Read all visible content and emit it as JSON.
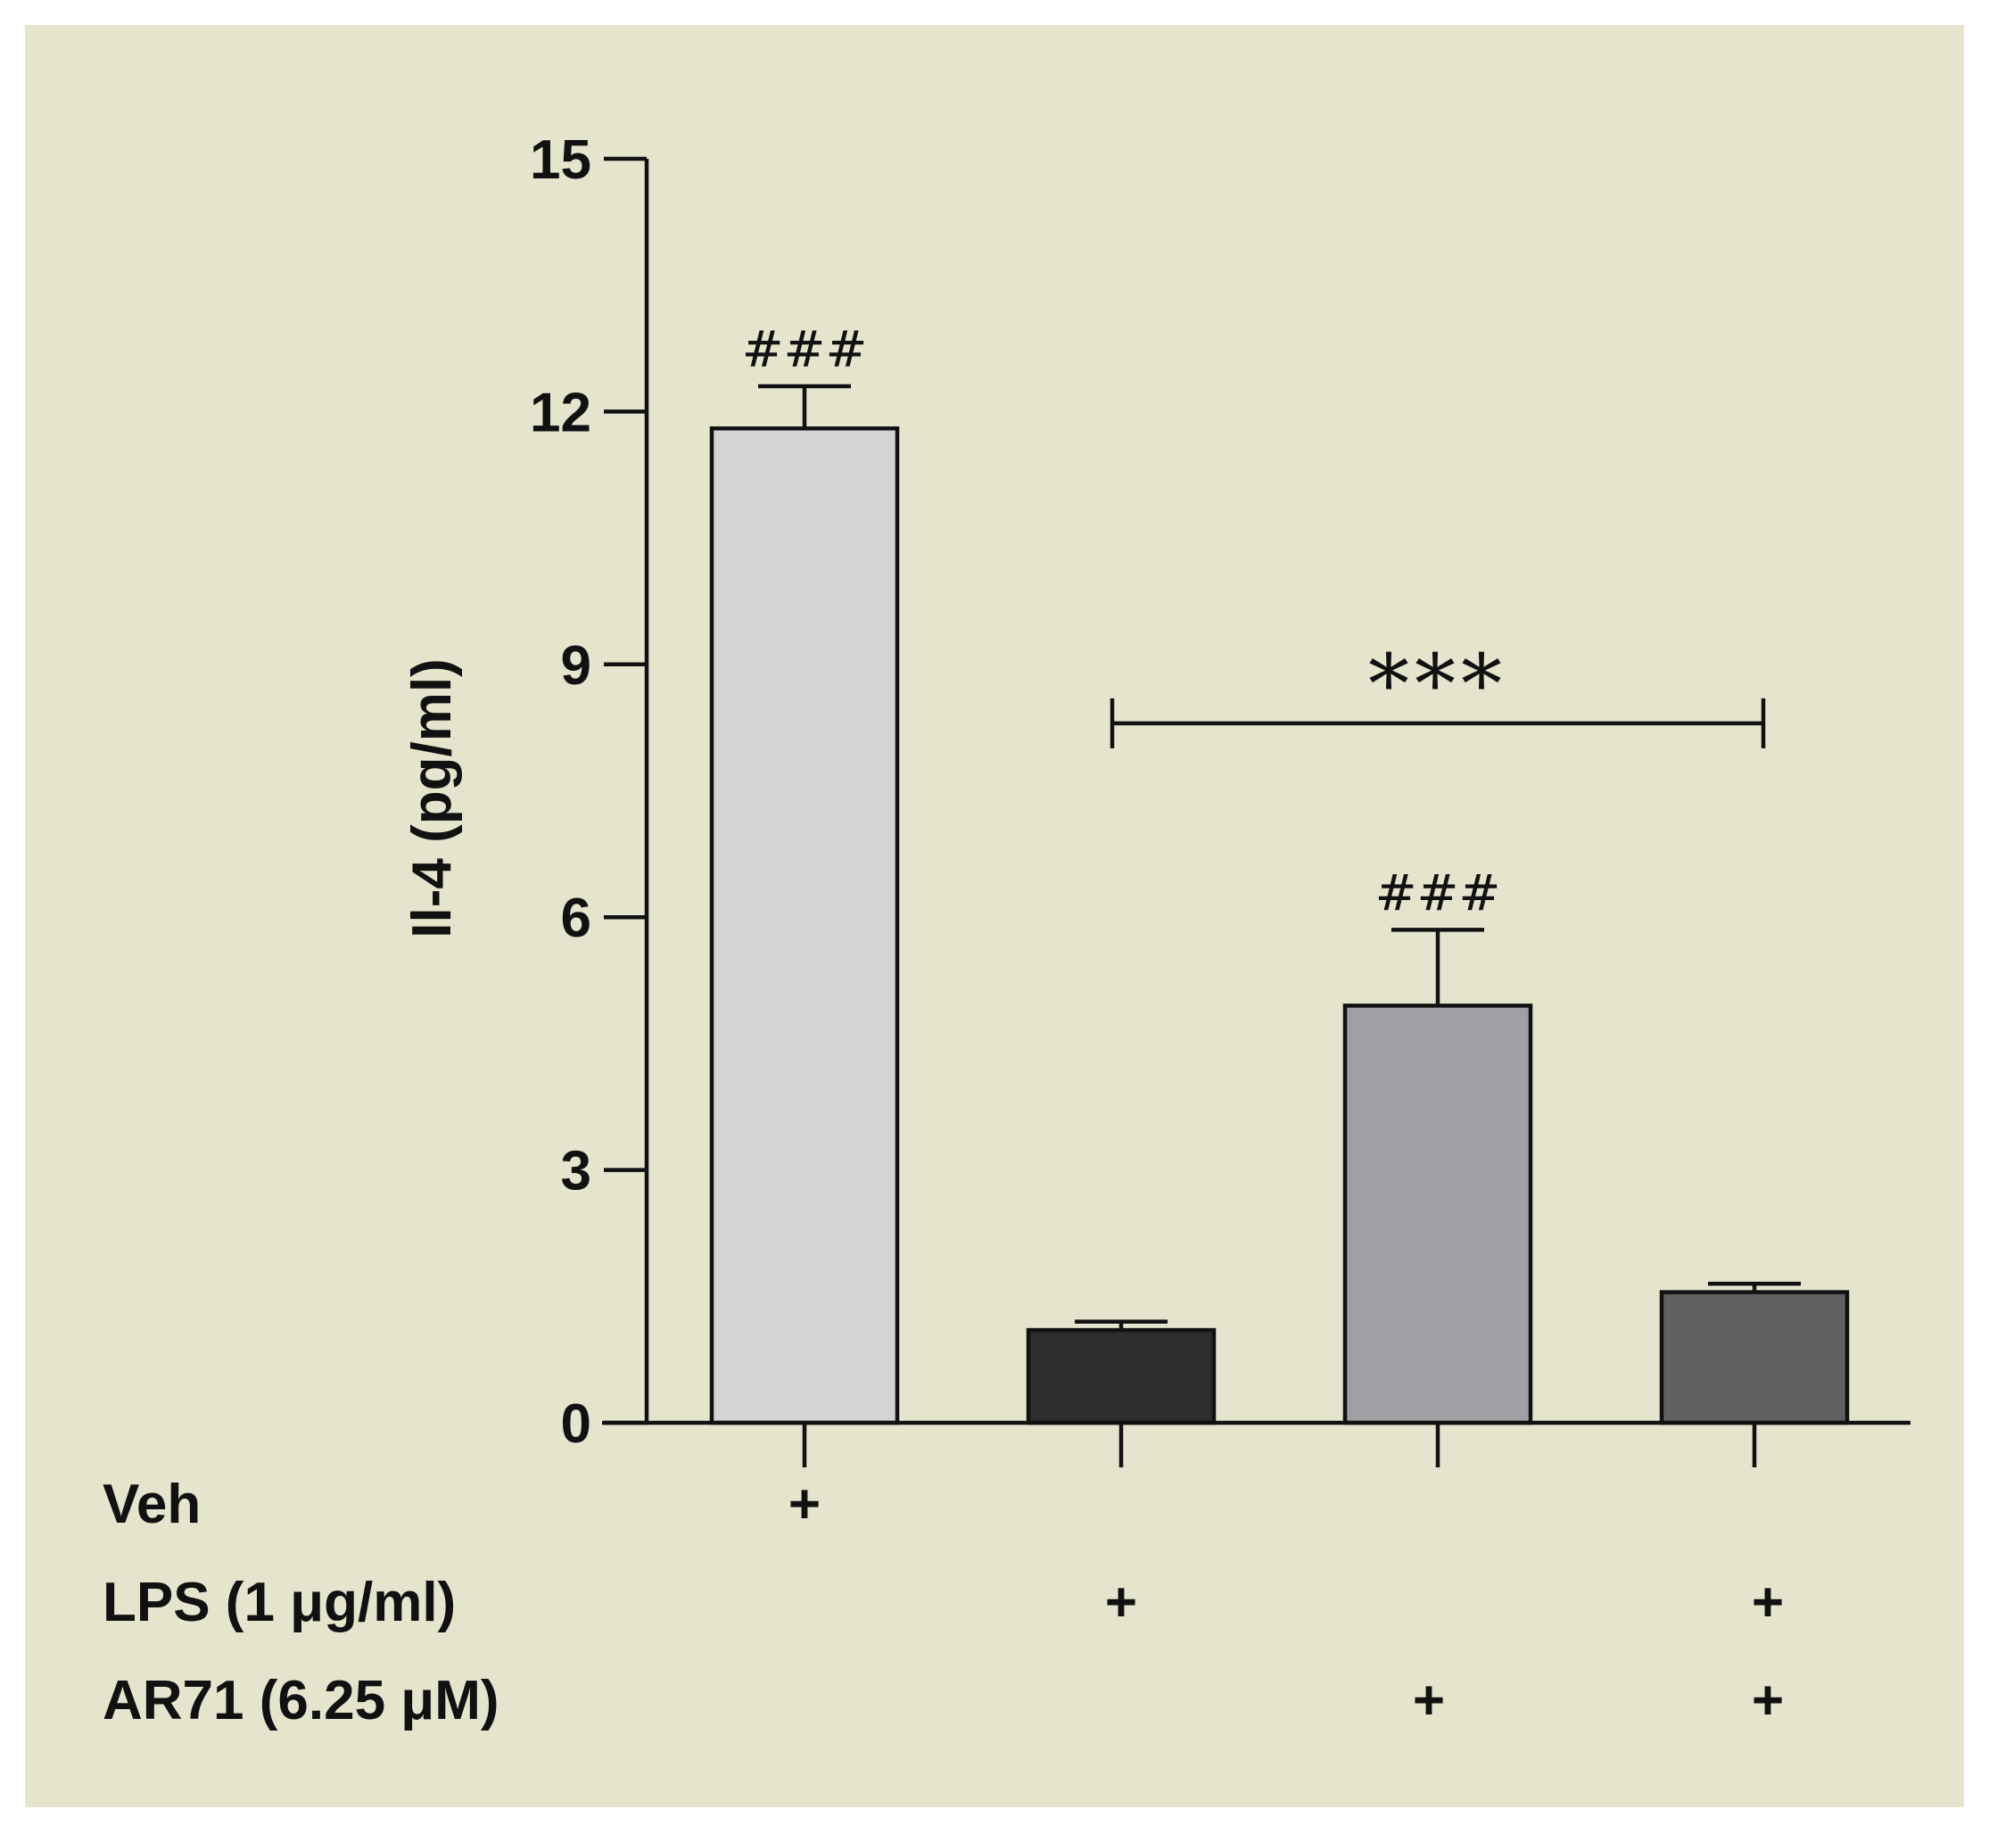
{
  "colors": {
    "background": "#e5e4cd",
    "axis": "#111111",
    "bar_outline": "#111111"
  },
  "chart_data": {
    "type": "bar",
    "title": "",
    "xlabel": "",
    "ylabel": "Il-4 (pg/ml)",
    "ylim": [
      0,
      15
    ],
    "yticks": [
      "0",
      "3",
      "6",
      "9",
      "12",
      "15"
    ],
    "ytick_values": [
      0,
      3,
      6,
      9,
      12,
      15
    ],
    "grid": false,
    "legend": "none",
    "bars": [
      {
        "value": 11.8,
        "error": 0.5,
        "color": "#d4d4d4",
        "annotation": "###"
      },
      {
        "value": 1.1,
        "error": 0.1,
        "color": "#2e2e2e",
        "annotation": ""
      },
      {
        "value": 4.95,
        "error": 0.9,
        "color": "#a19fa4",
        "annotation": "###"
      },
      {
        "value": 1.55,
        "error": 0.1,
        "color": "#606060",
        "annotation": ""
      }
    ],
    "comparison": {
      "from_bar": 1,
      "to_bar": 3,
      "y_value": 8.3,
      "label": "***"
    },
    "treatment_table": [
      {
        "label": "Veh",
        "marks": [
          "+",
          "",
          "",
          ""
        ]
      },
      {
        "label": "LPS (1 μg/ml)",
        "marks": [
          "",
          "+",
          "",
          "+"
        ]
      },
      {
        "label": "AR71 (6.25 μM)",
        "marks": [
          "",
          "",
          "+",
          "+"
        ]
      }
    ]
  }
}
